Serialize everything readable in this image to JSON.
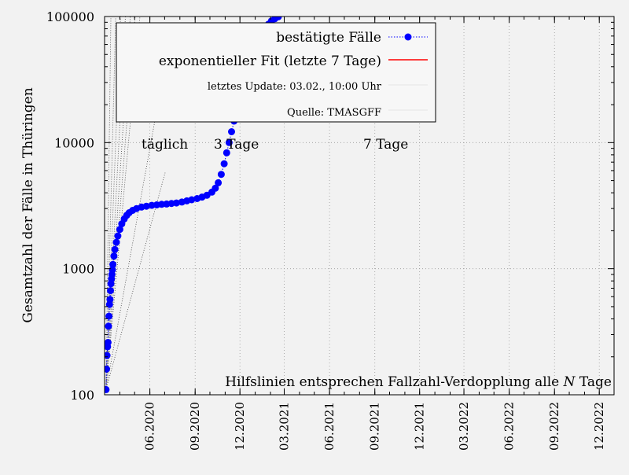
{
  "chart_data": {
    "type": "scatter",
    "ylabel": "Gesamtzahl der Fälle in Thüringen",
    "xlabel": "",
    "yscale": "log",
    "ylim": [
      100,
      100000
    ],
    "xlim": [
      "2020-03-01",
      "2022-12-31"
    ],
    "y_ticks": [
      {
        "value": 100,
        "label": "100"
      },
      {
        "value": 1000,
        "label": "1000"
      },
      {
        "value": 10000,
        "label": "10000"
      },
      {
        "value": 100000,
        "label": "100000"
      }
    ],
    "x_ticks": [
      {
        "date": "2020-06-01",
        "label": "06.2020"
      },
      {
        "date": "2020-09-01",
        "label": "09.2020"
      },
      {
        "date": "2020-12-01",
        "label": "12.2020"
      },
      {
        "date": "2021-03-01",
        "label": "03.2021"
      },
      {
        "date": "2021-06-01",
        "label": "06.2021"
      },
      {
        "date": "2021-09-01",
        "label": "09.2021"
      },
      {
        "date": "2021-12-01",
        "label": "12.2021"
      },
      {
        "date": "2022-03-01",
        "label": "03.2022"
      },
      {
        "date": "2022-06-01",
        "label": "06.2022"
      },
      {
        "date": "2022-09-01",
        "label": "09.2022"
      },
      {
        "date": "2022-12-01",
        "label": "12.2022"
      }
    ],
    "grid": true,
    "legend_position": "top-right",
    "series": [
      {
        "name": "bestätigte Fälle",
        "color": "#0000ff",
        "marker": "circle",
        "line": "dotted",
        "points": [
          {
            "x": "2020-03-04",
            "y": 110
          },
          {
            "x": "2020-03-05",
            "y": 160
          },
          {
            "x": "2020-03-06",
            "y": 205
          },
          {
            "x": "2020-03-07",
            "y": 240
          },
          {
            "x": "2020-03-08",
            "y": 260
          },
          {
            "x": "2020-03-09",
            "y": 350
          },
          {
            "x": "2020-03-10",
            "y": 420
          },
          {
            "x": "2020-03-11",
            "y": 520
          },
          {
            "x": "2020-03-12",
            "y": 570
          },
          {
            "x": "2020-03-13",
            "y": 670
          },
          {
            "x": "2020-03-14",
            "y": 760
          },
          {
            "x": "2020-03-15",
            "y": 830
          },
          {
            "x": "2020-03-16",
            "y": 900
          },
          {
            "x": "2020-03-17",
            "y": 980
          },
          {
            "x": "2020-03-18",
            "y": 1080
          },
          {
            "x": "2020-03-20",
            "y": 1260
          },
          {
            "x": "2020-03-22",
            "y": 1420
          },
          {
            "x": "2020-03-25",
            "y": 1620
          },
          {
            "x": "2020-03-28",
            "y": 1820
          },
          {
            "x": "2020-04-01",
            "y": 2050
          },
          {
            "x": "2020-04-05",
            "y": 2270
          },
          {
            "x": "2020-04-10",
            "y": 2480
          },
          {
            "x": "2020-04-15",
            "y": 2650
          },
          {
            "x": "2020-04-20",
            "y": 2780
          },
          {
            "x": "2020-04-27",
            "y": 2900
          },
          {
            "x": "2020-05-05",
            "y": 3000
          },
          {
            "x": "2020-05-15",
            "y": 3080
          },
          {
            "x": "2020-05-25",
            "y": 3130
          },
          {
            "x": "2020-06-05",
            "y": 3180
          },
          {
            "x": "2020-06-15",
            "y": 3210
          },
          {
            "x": "2020-06-25",
            "y": 3240
          },
          {
            "x": "2020-07-05",
            "y": 3260
          },
          {
            "x": "2020-07-15",
            "y": 3290
          },
          {
            "x": "2020-07-25",
            "y": 3320
          },
          {
            "x": "2020-08-05",
            "y": 3380
          },
          {
            "x": "2020-08-15",
            "y": 3450
          },
          {
            "x": "2020-08-25",
            "y": 3520
          },
          {
            "x": "2020-09-05",
            "y": 3600
          },
          {
            "x": "2020-09-15",
            "y": 3700
          },
          {
            "x": "2020-09-25",
            "y": 3820
          },
          {
            "x": "2020-10-05",
            "y": 4050
          },
          {
            "x": "2020-10-12",
            "y": 4350
          },
          {
            "x": "2020-10-18",
            "y": 4800
          },
          {
            "x": "2020-10-24",
            "y": 5600
          },
          {
            "x": "2020-10-30",
            "y": 6800
          },
          {
            "x": "2020-11-04",
            "y": 8300
          },
          {
            "x": "2020-11-09",
            "y": 10000
          },
          {
            "x": "2020-11-14",
            "y": 12200
          },
          {
            "x": "2020-11-19",
            "y": 14800
          },
          {
            "x": "2020-11-24",
            "y": 17800
          },
          {
            "x": "2020-11-29",
            "y": 21500
          },
          {
            "x": "2020-12-04",
            "y": 25500
          },
          {
            "x": "2020-12-09",
            "y": 30500
          },
          {
            "x": "2020-12-14",
            "y": 36000
          },
          {
            "x": "2020-12-19",
            "y": 42000
          },
          {
            "x": "2020-12-24",
            "y": 48500
          },
          {
            "x": "2020-12-31",
            "y": 56000
          },
          {
            "x": "2021-01-07",
            "y": 64000
          },
          {
            "x": "2021-01-14",
            "y": 72000
          },
          {
            "x": "2021-01-21",
            "y": 80000
          },
          {
            "x": "2021-01-28",
            "y": 87000
          },
          {
            "x": "2021-02-03",
            "y": 92000
          },
          {
            "x": "2021-02-10",
            "y": 96000
          },
          {
            "x": "2021-02-17",
            "y": 99500
          }
        ]
      },
      {
        "name": "exponentieller Fit (letzte 7 Tage)",
        "color": "#ff0000",
        "line": "solid",
        "points": []
      }
    ],
    "annotations": {
      "footer": "Hilfslinien entsprechen Fallzahl-Verdopplung alle ",
      "footer_n": "N",
      "footer_end": " Tage",
      "doubling_labels": [
        "täglich",
        "3 Tage",
        "7 Tage"
      ],
      "update": "letztes Update: 03.02., 10:00 Uhr",
      "source": "Quelle: TMASGFF"
    }
  }
}
